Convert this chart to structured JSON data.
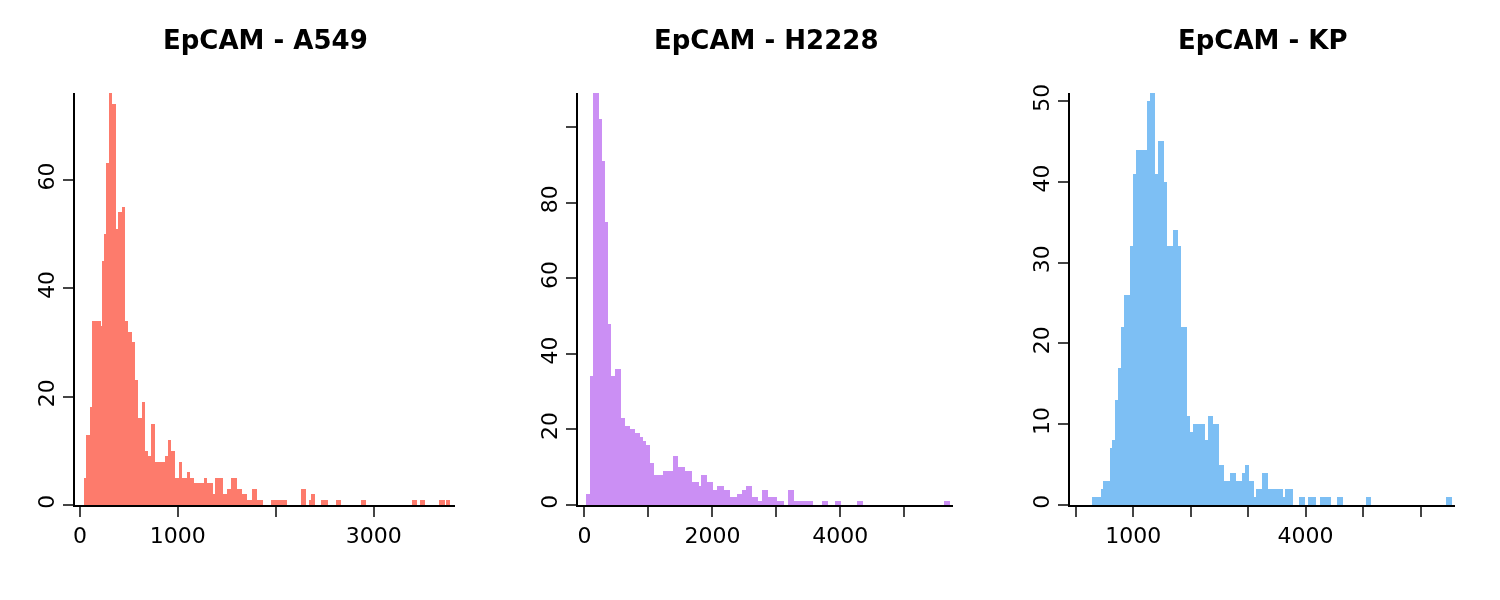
{
  "chart_data": [
    {
      "type": "histogram",
      "title": "EpCAM - A549",
      "color": "#fd7b6c",
      "bins": [
        40,
        65,
        100,
        125,
        215,
        230,
        250,
        265,
        300,
        330,
        365,
        390,
        430,
        465,
        495,
        530,
        565,
        590,
        635,
        665,
        695,
        730,
        765,
        795,
        865,
        900,
        935,
        970,
        1010,
        1045,
        1090,
        1125,
        1170,
        1215,
        1265,
        1300,
        1355,
        1380,
        1460,
        1500,
        1545,
        1600,
        1655,
        1705,
        1760,
        1810,
        1865,
        1950,
        2110,
        2255,
        2305,
        2335,
        2360,
        2405,
        2460,
        2530,
        2620,
        2665,
        2875,
        2925,
        3395,
        3445,
        3475,
        3525,
        3670,
        3725,
        3735,
        3780
      ],
      "values": [
        5,
        13,
        18,
        34,
        33,
        45,
        50,
        63,
        76,
        74,
        51,
        54,
        55,
        34,
        32,
        30,
        23,
        16,
        19,
        10,
        9,
        15,
        8,
        8,
        9,
        12,
        10,
        5,
        8,
        5,
        6,
        5,
        4,
        4,
        5,
        4,
        2,
        5,
        2,
        3,
        5,
        3,
        2,
        1,
        3,
        1,
        0,
        1,
        0,
        3,
        0,
        1,
        2,
        0,
        1,
        0,
        1,
        0,
        1,
        0,
        1,
        0,
        1,
        0,
        1,
        0,
        1
      ],
      "xlim": [
        -50,
        3830
      ],
      "xticks": [
        0,
        1000,
        {
          "value": 2000,
          "label": null
        },
        3000
      ],
      "ylim": [
        0,
        76
      ],
      "yticks": [
        0,
        20,
        40,
        60
      ]
    },
    {
      "type": "histogram",
      "title": "EpCAM - H2228",
      "color": "#cb8ff4",
      "bins": [
        30,
        85,
        135,
        225,
        270,
        325,
        375,
        420,
        480,
        570,
        630,
        720,
        785,
        870,
        915,
        970,
        1020,
        1080,
        1225,
        1385,
        1465,
        1570,
        1680,
        1785,
        1825,
        1915,
        2015,
        2075,
        2175,
        2280,
        2385,
        2465,
        2530,
        2615,
        2715,
        2770,
        2865,
        3010,
        3115,
        3180,
        3275,
        3570,
        3715,
        3805,
        3915,
        4005,
        4260,
        4350,
        5620,
        5710
      ],
      "values": [
        3,
        34,
        109,
        102,
        91,
        75,
        48,
        34,
        36,
        23,
        21,
        20,
        19,
        18,
        17,
        16,
        11,
        8,
        9,
        13,
        10,
        9,
        6,
        5,
        8,
        6,
        4,
        5,
        4,
        2,
        3,
        4,
        5,
        2,
        1,
        4,
        2,
        1,
        0,
        4,
        1,
        0,
        1,
        0,
        1,
        0,
        1,
        0,
        1
      ],
      "xlim": [
        -100,
        5760
      ],
      "xticks": [
        0,
        {
          "value": 1000,
          "label": null
        },
        2000,
        {
          "value": 3000,
          "label": null
        },
        4000,
        {
          "value": 5000,
          "label": null
        }
      ],
      "ylim": [
        0,
        109
      ],
      "yticks": [
        0,
        20,
        40,
        60,
        80,
        {
          "value": 100,
          "label": null
        }
      ]
    },
    {
      "type": "histogram",
      "title": "EpCAM - KP",
      "color": "#7dbff4",
      "bins": [
        280,
        435,
        480,
        590,
        635,
        680,
        735,
        790,
        840,
        940,
        995,
        1040,
        1240,
        1295,
        1375,
        1435,
        1530,
        1585,
        1685,
        1785,
        1835,
        1935,
        1995,
        2040,
        2245,
        2295,
        2395,
        2495,
        2585,
        2685,
        2785,
        2890,
        2940,
        3020,
        3100,
        3145,
        3245,
        3340,
        3600,
        3640,
        3785,
        3890,
        3990,
        4050,
        4185,
        4245,
        4450,
        4540,
        4645,
        5050,
        5145,
        6450,
        6550
      ],
      "values": [
        1,
        2,
        3,
        7,
        8,
        13,
        17,
        22,
        26,
        32,
        41,
        44,
        50,
        51,
        41,
        45,
        40,
        32,
        34,
        32,
        22,
        11,
        9,
        10,
        8,
        11,
        10,
        5,
        3,
        4,
        3,
        4,
        5,
        3,
        1,
        2,
        4,
        2,
        1,
        2,
        0,
        1,
        0,
        1,
        0,
        1,
        0,
        1,
        0,
        1,
        0,
        1
      ],
      "xlim": [
        -100,
        6600
      ],
      "xticks": [
        {
          "value": 0,
          "label": null
        },
        1000,
        {
          "value": 2000,
          "label": null
        },
        {
          "value": 3000,
          "label": null
        },
        4000,
        {
          "value": 5000,
          "label": null
        },
        {
          "value": 6000,
          "label": null
        }
      ],
      "ylim": [
        0,
        51
      ],
      "yticks": [
        0,
        10,
        20,
        30,
        40,
        50
      ]
    }
  ]
}
